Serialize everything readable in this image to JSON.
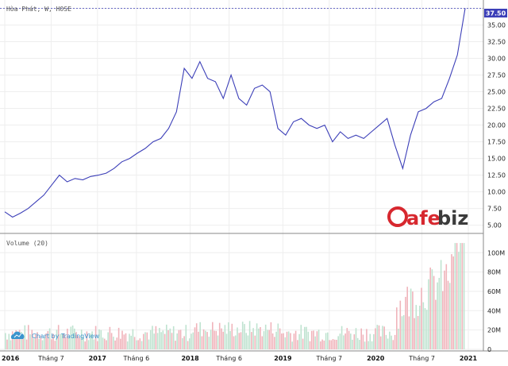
{
  "chart_data": {
    "type": "line",
    "title": "Hòa Phát, W, HOSE",
    "price": {
      "x": [
        "2016-01",
        "2016-02",
        "2016-03",
        "2016-04",
        "2016-05",
        "2016-06",
        "2016-07",
        "2016-08",
        "2016-09",
        "2016-10",
        "2016-11",
        "2016-12",
        "2017-01",
        "2017-02",
        "2017-03",
        "2017-04",
        "2017-05",
        "2017-06",
        "2017-07",
        "2017-08",
        "2017-09",
        "2017-10",
        "2017-11",
        "2017-12",
        "2018-01",
        "2018-02",
        "2018-03",
        "2018-04",
        "2018-05",
        "2018-06",
        "2018-07",
        "2018-08",
        "2018-09",
        "2018-10",
        "2018-11",
        "2018-12",
        "2019-01",
        "2019-02",
        "2019-03",
        "2019-04",
        "2019-05",
        "2019-06",
        "2019-07",
        "2019-08",
        "2019-09",
        "2019-10",
        "2019-11",
        "2019-12",
        "2020-01",
        "2020-02",
        "2020-03",
        "2020-04",
        "2020-05",
        "2020-06",
        "2020-07",
        "2020-08",
        "2020-09",
        "2020-10",
        "2020-11",
        "2020-12"
      ],
      "values": [
        7.0,
        6.2,
        6.8,
        7.5,
        8.5,
        9.5,
        11.0,
        12.5,
        11.5,
        12.0,
        11.8,
        12.3,
        12.5,
        12.8,
        13.5,
        14.5,
        15.0,
        15.8,
        16.5,
        17.5,
        18.0,
        19.5,
        22.0,
        28.5,
        27.0,
        29.5,
        27.0,
        26.5,
        24.0,
        27.5,
        24.0,
        23.0,
        25.5,
        26.0,
        25.0,
        19.5,
        18.5,
        20.5,
        21.0,
        20.0,
        19.5,
        20.0,
        17.5,
        19.0,
        18.0,
        18.5,
        18.0,
        19.0,
        20.0,
        21.0,
        17.0,
        13.5,
        18.5,
        22.0,
        22.5,
        23.5,
        24.0,
        27.0,
        30.5,
        37.5
      ],
      "ylim": [
        4.0,
        37.8
      ],
      "yticks": [
        "37.50",
        "35.00",
        "32.50",
        "30.00",
        "27.50",
        "25.00",
        "22.50",
        "20.00",
        "17.50",
        "15.00",
        "12.50",
        "10.00",
        "7.50",
        "5.00"
      ],
      "last_value": "37.50",
      "line_color": "#3c3fb8"
    },
    "volume": {
      "label": "Volume (20)",
      "ylim": [
        0,
        115
      ],
      "yticks": [
        "100M",
        "80M",
        "60M",
        "40M",
        "20M",
        "0"
      ],
      "up_color": "#bfe3d0",
      "down_color": "#f0b4bb"
    },
    "xticks": [
      {
        "label": "2016",
        "major": true,
        "pos": 0.0
      },
      {
        "label": "Tháng 7",
        "major": false,
        "pos": 0.5
      },
      {
        "label": "2017",
        "major": true,
        "pos": 1.0
      },
      {
        "label": "Tháng 6",
        "major": false,
        "pos": 1.42
      },
      {
        "label": "2018",
        "major": true,
        "pos": 2.0
      },
      {
        "label": "Tháng 6",
        "major": false,
        "pos": 2.42
      },
      {
        "label": "2019",
        "major": true,
        "pos": 3.0
      },
      {
        "label": "Tháng 7",
        "major": false,
        "pos": 3.5
      },
      {
        "label": "2020",
        "major": true,
        "pos": 4.0
      },
      {
        "label": "Tháng 7",
        "major": false,
        "pos": 4.5
      },
      {
        "label": "2021",
        "major": true,
        "pos": 5.0
      }
    ]
  },
  "watermark": {
    "brand": "Cafebiz",
    "prefix": "C",
    "middle": "afe",
    "suffix": "biz",
    "attribution": "Chart by TradingView"
  },
  "colors": {
    "grid": "#eeeeee",
    "border": "#888888",
    "logo_red": "#d7282f",
    "logo_dark": "#3b3b3b"
  }
}
